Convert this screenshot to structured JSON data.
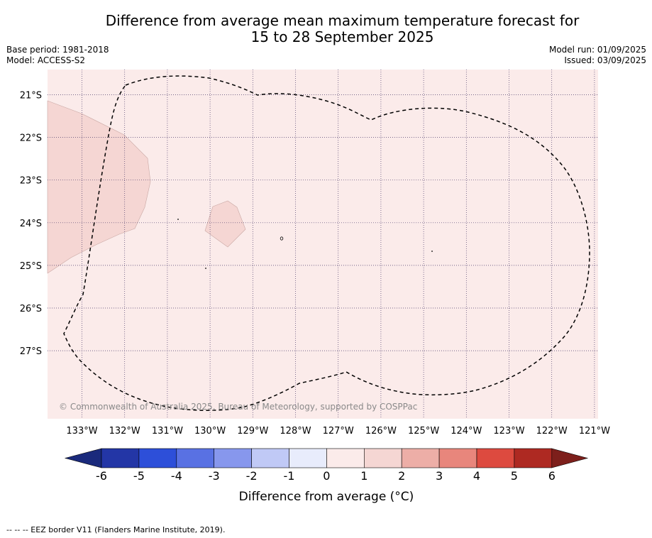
{
  "title": {
    "line1": "Difference from average mean maximum temperature forecast for",
    "line2": "15 to 28 September 2025"
  },
  "meta": {
    "base_period": "Base period: 1981-2018",
    "model": "Model: ACCESS-S2",
    "model_run": "Model run: 01/09/2025",
    "issued": "Issued: 03/09/2025"
  },
  "map": {
    "lon_labels": [
      "133°W",
      "132°W",
      "131°W",
      "130°W",
      "129°W",
      "128°W",
      "127°W",
      "126°W",
      "125°W",
      "124°W",
      "123°W",
      "122°W",
      "121°W"
    ],
    "lat_labels": [
      "21°S",
      "22°S",
      "23°S",
      "24°S",
      "25°S",
      "26°S",
      "27°S"
    ],
    "background_fill": "#fbebea",
    "anomaly_fill": "#f5d6d3",
    "copyright": "© Commonwealth of Australia 2025, Bureau of Meteorology, supported by COSPPac"
  },
  "colorbar": {
    "label": "Difference from average (°C)",
    "ticks": [
      "-6",
      "-5",
      "-4",
      "-3",
      "-2",
      "-1",
      "0",
      "1",
      "2",
      "3",
      "4",
      "5",
      "6"
    ],
    "colors": [
      "#2336a6",
      "#2d4fd9",
      "#5971e3",
      "#8797ed",
      "#c0c9f6",
      "#e8ecfc",
      "#fbebea",
      "#f5d6d3",
      "#edaea7",
      "#e8867c",
      "#dd4a3f",
      "#ae2922"
    ],
    "under_color": "#1a2a7c",
    "over_color": "#7d1f1b"
  },
  "footnote": "--  --  -- EEZ border V11 (Flanders Marine Institute, 2019)."
}
